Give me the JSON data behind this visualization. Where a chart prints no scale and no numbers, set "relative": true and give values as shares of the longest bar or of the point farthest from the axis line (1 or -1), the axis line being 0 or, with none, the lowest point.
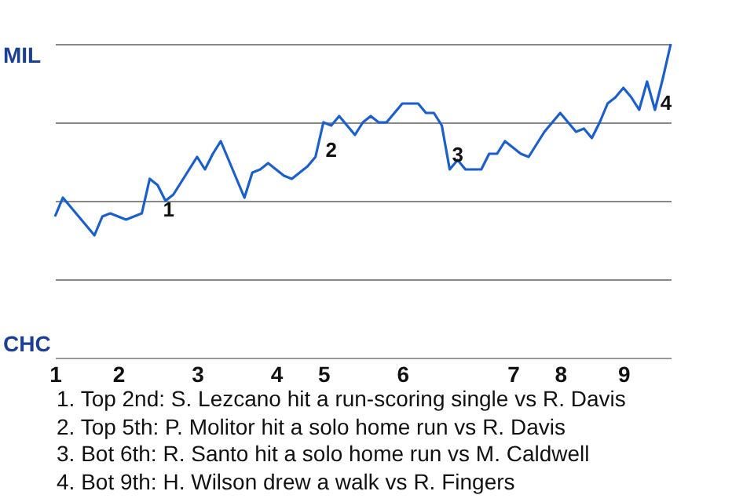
{
  "chart_data": {
    "type": "line",
    "relative": true,
    "categories": [
      "1",
      null,
      null,
      null,
      null,
      null,
      null,
      null,
      "2",
      null,
      null,
      null,
      null,
      null,
      null,
      null,
      null,
      null,
      "3",
      null,
      null,
      null,
      null,
      null,
      null,
      null,
      null,
      null,
      "4",
      null,
      null,
      null,
      null,
      null,
      "5",
      null,
      null,
      null,
      null,
      null,
      null,
      null,
      null,
      null,
      "6",
      null,
      null,
      null,
      null,
      null,
      null,
      null,
      null,
      null,
      null,
      null,
      null,
      null,
      "7",
      null,
      null,
      null,
      null,
      null,
      "8",
      null,
      null,
      null,
      null,
      null,
      null,
      null,
      "9",
      null,
      null,
      null,
      null,
      null,
      null
    ],
    "series": [
      {
        "color": "#1a5fd0",
        "values": [
          0.45,
          0.51,
          0.48,
          0.45,
          0.42,
          0.39,
          0.45,
          0.46,
          0.45,
          0.44,
          0.45,
          0.46,
          0.57,
          0.55,
          0.5,
          0.52,
          0.56,
          0.6,
          0.64,
          0.6,
          0.65,
          0.69,
          0.63,
          0.57,
          0.51,
          0.59,
          0.6,
          0.62,
          0.6,
          0.58,
          0.57,
          0.59,
          0.61,
          0.64,
          0.75,
          0.74,
          0.77,
          0.74,
          0.71,
          0.75,
          0.77,
          0.75,
          0.75,
          0.78,
          0.81,
          0.81,
          0.81,
          0.78,
          0.78,
          0.74,
          0.6,
          0.63,
          0.6,
          0.6,
          0.6,
          0.65,
          0.65,
          0.69,
          0.67,
          0.65,
          0.64,
          0.68,
          0.72,
          0.75,
          0.78,
          0.75,
          0.72,
          0.73,
          0.7,
          0.75,
          0.81,
          0.83,
          0.86,
          0.83,
          0.79,
          0.88,
          0.79,
          0.89,
          1
        ]
      }
    ],
    "grid": "y",
    "annotations": [
      "MIL",
      "CHC",
      "1",
      "2",
      "3",
      "4",
      "1. Top 2nd: S. Lezcano hit a run-scoring single vs R. Davis",
      "2. Top 5th: P. Molitor hit a solo home run vs R. Davis",
      "3. Bot 6th: R. Santo hit a solo home run vs M. Caldwell",
      "4. Bot 9th: H. Wilson drew a walk vs R. Fingers"
    ]
  }
}
